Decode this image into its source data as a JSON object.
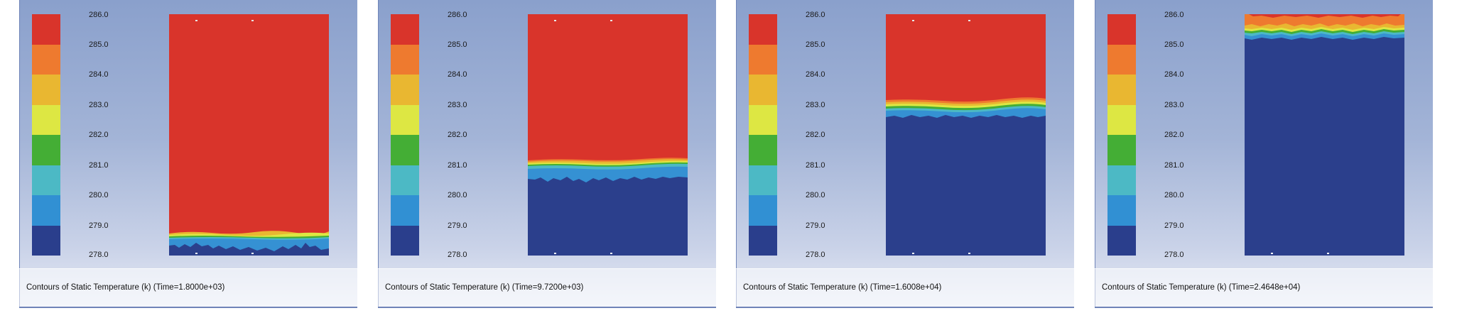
{
  "legend": {
    "ticks": [
      "286.0",
      "285.0",
      "284.0",
      "283.0",
      "282.0",
      "281.0",
      "280.0",
      "279.0",
      "278.0"
    ],
    "colors": [
      "#d9342b",
      "#ee7a2f",
      "#e9b731",
      "#dde743",
      "#44ae35",
      "#4cb9c5",
      "#3190d3",
      "#2a3e8c"
    ]
  },
  "colors": {
    "cold": "#2b3f8c",
    "hot": "#d9342b",
    "lightblue": "#3591d3"
  },
  "panels": [
    {
      "caption": "Contours of Static Temperature (k)  (Time=1.8000e+03)",
      "hot_fraction": 0.86,
      "description_key": "panel-1"
    },
    {
      "caption": "Contours of Static Temperature (k)  (Time=9.7200e+03)",
      "hot_fraction": 0.58,
      "description_key": "panel-2"
    },
    {
      "caption": "Contours of Static Temperature (k)  (Time=1.6008e+04)",
      "hot_fraction": 0.34,
      "description_key": "panel-3"
    },
    {
      "caption": "Contours of Static Temperature (k)  (Time=2.4648e+04)",
      "hot_fraction": 0.05,
      "description_key": "panel-4"
    }
  ]
}
